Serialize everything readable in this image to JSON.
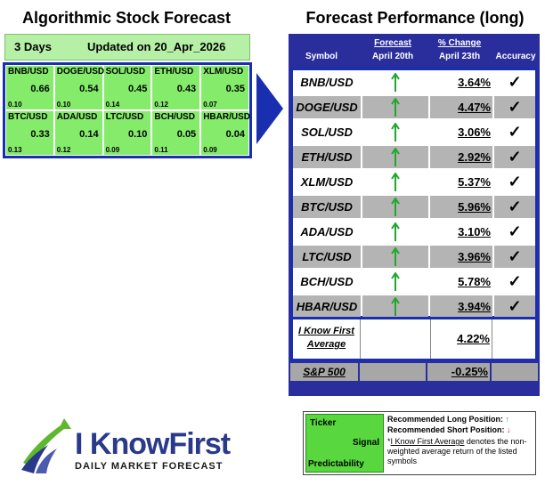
{
  "left": {
    "title": "Algorithmic Stock Forecast",
    "days": "3 Days",
    "updated": "Updated on 20_Apr_2026",
    "cells": [
      {
        "symbol": "BNB/USD",
        "signal": "0.66",
        "predictability": "0.10"
      },
      {
        "symbol": "DOGE/USD",
        "signal": "0.54",
        "predictability": "0.10"
      },
      {
        "symbol": "SOL/USD",
        "signal": "0.45",
        "predictability": "0.14"
      },
      {
        "symbol": "ETH/USD",
        "signal": "0.43",
        "predictability": "0.12"
      },
      {
        "symbol": "XLM/USD",
        "signal": "0.35",
        "predictability": "0.07"
      },
      {
        "symbol": "BTC/USD",
        "signal": "0.33",
        "predictability": "0.13"
      },
      {
        "symbol": "ADA/USD",
        "signal": "0.14",
        "predictability": "0.12"
      },
      {
        "symbol": "LTC/USD",
        "signal": "0.10",
        "predictability": "0.09"
      },
      {
        "symbol": "BCH/USD",
        "signal": "0.05",
        "predictability": "0.11"
      },
      {
        "symbol": "HBAR/USD",
        "signal": "0.04",
        "predictability": "0.09"
      }
    ]
  },
  "right": {
    "title": "Forecast Performance (long)",
    "headers": {
      "symbol": "Symbol",
      "forecast": "Forecast",
      "forecast_date": "April 20th",
      "change": "% Change",
      "change_date": "April 23th",
      "accuracy": "Accuracy"
    },
    "rows": [
      {
        "symbol": "BNB/USD",
        "forecast": "up",
        "change": "3.64%",
        "accuracy": "✓"
      },
      {
        "symbol": "DOGE/USD",
        "forecast": "up",
        "change": "4.47%",
        "accuracy": "✓"
      },
      {
        "symbol": "SOL/USD",
        "forecast": "up",
        "change": "3.06%",
        "accuracy": "✓"
      },
      {
        "symbol": "ETH/USD",
        "forecast": "up",
        "change": "2.92%",
        "accuracy": "✓"
      },
      {
        "symbol": "XLM/USD",
        "forecast": "up",
        "change": "5.37%",
        "accuracy": "✓"
      },
      {
        "symbol": "BTC/USD",
        "forecast": "up",
        "change": "5.96%",
        "accuracy": "✓"
      },
      {
        "symbol": "ADA/USD",
        "forecast": "up",
        "change": "3.10%",
        "accuracy": "✓"
      },
      {
        "symbol": "LTC/USD",
        "forecast": "up",
        "change": "3.96%",
        "accuracy": "✓"
      },
      {
        "symbol": "BCH/USD",
        "forecast": "up",
        "change": "5.78%",
        "accuracy": "✓"
      },
      {
        "symbol": "HBAR/USD",
        "forecast": "up",
        "change": "3.94%",
        "accuracy": "✓"
      }
    ],
    "average": {
      "label_line1": "I Know First",
      "label_line2": "Average",
      "change": "4.22%"
    },
    "benchmark": {
      "label": "S&P 500",
      "change": "-0.25%"
    }
  },
  "logo": {
    "brand_a": "I Know",
    "brand_b": "First",
    "tagline": "DAILY MARKET FORECAST"
  },
  "legend": {
    "ticker": "Ticker",
    "signal": "Signal",
    "predictability": "Predictability",
    "long_label": "Recommended Long Position:",
    "short_label": "Recommended Short Position:",
    "note_link": "I Know First Average",
    "note_prefix": "*",
    "note_text": " denotes the non-weighted average return of the listed symbols"
  },
  "colors": {
    "navy": "#2a2e9c",
    "border_blue": "#1a2fb0",
    "cell_green": "#84ec6a",
    "header_green": "#b6f0a6",
    "row_gray": "#b4b4b4",
    "arrow_green": "#1fa82a",
    "arrow_red": "#d9261c"
  }
}
